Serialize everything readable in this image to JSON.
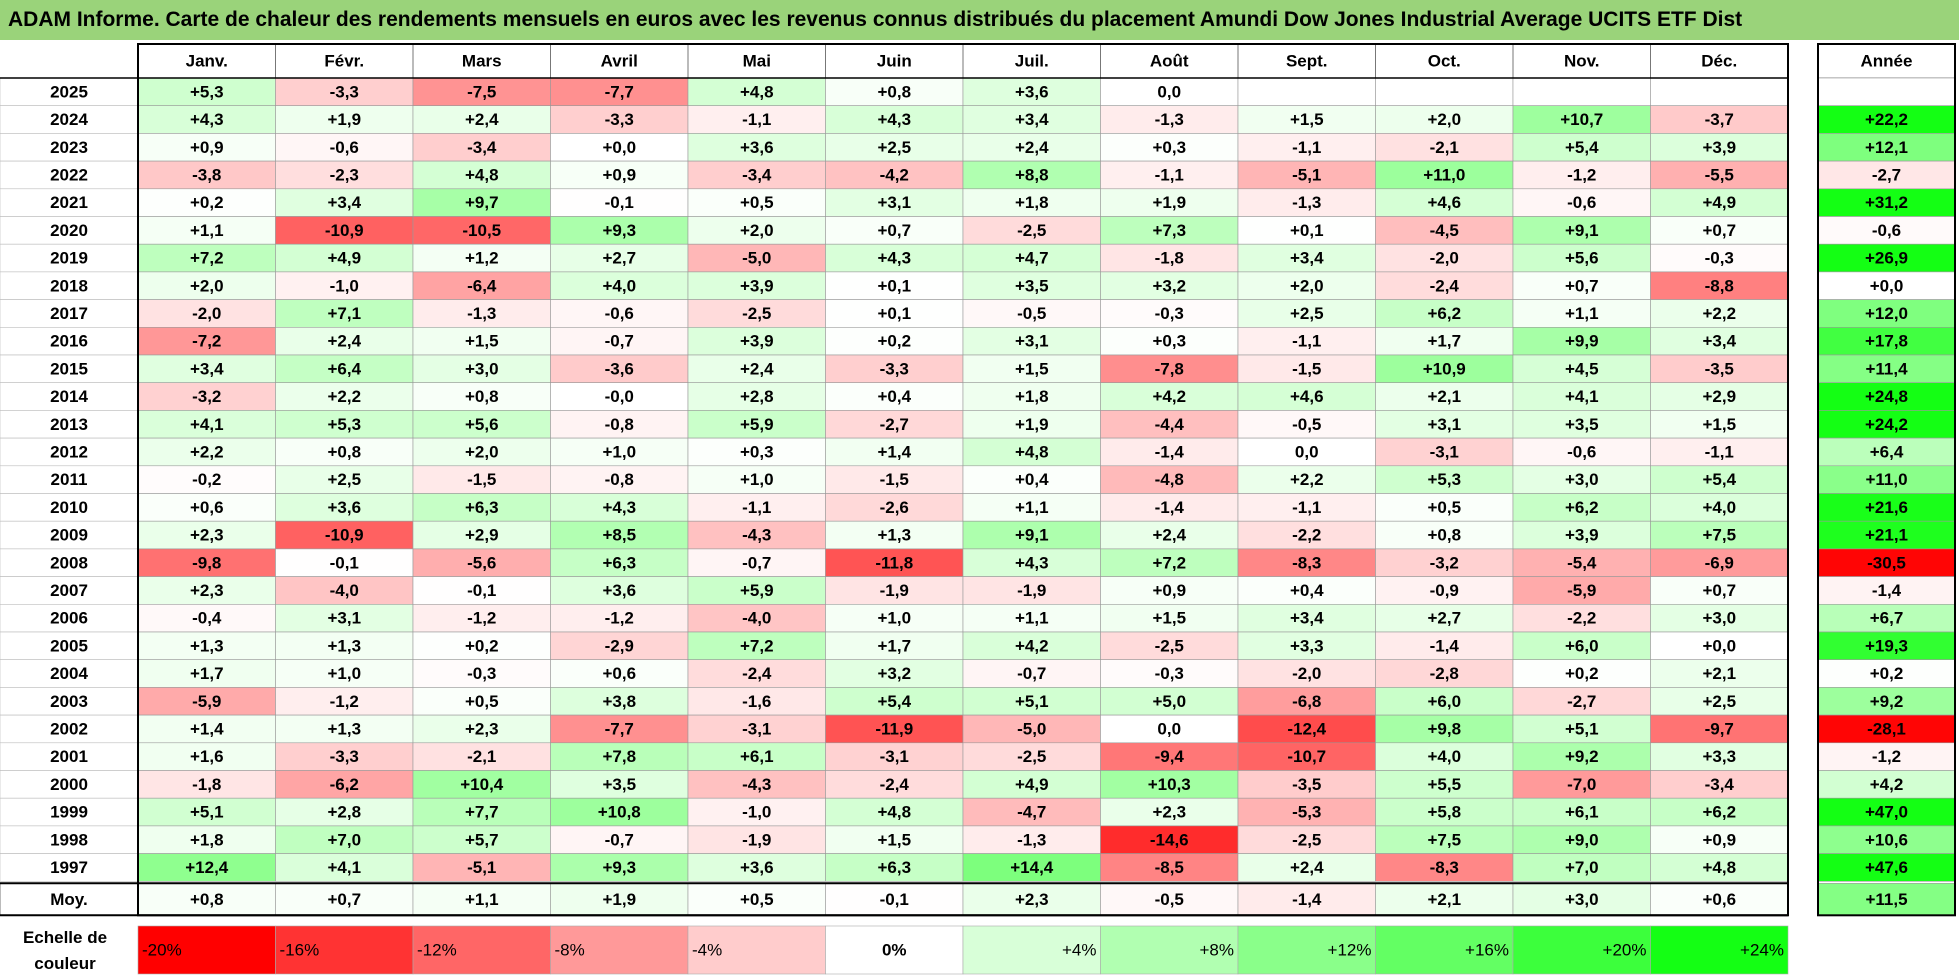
{
  "title": "ADAM Informe. Carte de chaleur des rendements mensuels en euros avec les revenus connus distribués du placement Amundi Dow Jones Industrial Average UCITS ETF Dist",
  "chart_data": {
    "type": "heatmap",
    "months": [
      "Janv.",
      "Févr.",
      "Mars",
      "Avril",
      "Mai",
      "Juin",
      "Juil.",
      "Août",
      "Sept.",
      "Oct.",
      "Nov.",
      "Déc."
    ],
    "year_header": "Année",
    "rows": [
      {
        "year": "2025",
        "values": [
          "+5,3",
          "-3,3",
          "-7,5",
          "-7,7",
          "+4,8",
          "+0,8",
          "+3,6",
          "0,0",
          "",
          "",
          "",
          ""
        ],
        "annual": ""
      },
      {
        "year": "2024",
        "values": [
          "+4,3",
          "+1,9",
          "+2,4",
          "-3,3",
          "-1,1",
          "+4,3",
          "+3,4",
          "-1,3",
          "+1,5",
          "+2,0",
          "+10,7",
          "-3,7"
        ],
        "annual": "+22,2"
      },
      {
        "year": "2023",
        "values": [
          "+0,9",
          "-0,6",
          "-3,4",
          "+0,0",
          "+3,6",
          "+2,5",
          "+2,4",
          "+0,3",
          "-1,1",
          "-2,1",
          "+5,4",
          "+3,9"
        ],
        "annual": "+12,1"
      },
      {
        "year": "2022",
        "values": [
          "-3,8",
          "-2,3",
          "+4,8",
          "+0,9",
          "-3,4",
          "-4,2",
          "+8,8",
          "-1,1",
          "-5,1",
          "+11,0",
          "-1,2",
          "-5,5"
        ],
        "annual": "-2,7"
      },
      {
        "year": "2021",
        "values": [
          "+0,2",
          "+3,4",
          "+9,7",
          "-0,1",
          "+0,5",
          "+3,1",
          "+1,8",
          "+1,9",
          "-1,3",
          "+4,6",
          "-0,6",
          "+4,9"
        ],
        "annual": "+31,2"
      },
      {
        "year": "2020",
        "values": [
          "+1,1",
          "-10,9",
          "-10,5",
          "+9,3",
          "+2,0",
          "+0,7",
          "-2,5",
          "+7,3",
          "+0,1",
          "-4,5",
          "+9,1",
          "+0,7"
        ],
        "annual": "-0,6"
      },
      {
        "year": "2019",
        "values": [
          "+7,2",
          "+4,9",
          "+1,2",
          "+2,7",
          "-5,0",
          "+4,3",
          "+4,7",
          "-1,8",
          "+3,4",
          "-2,0",
          "+5,6",
          "-0,3"
        ],
        "annual": "+26,9"
      },
      {
        "year": "2018",
        "values": [
          "+2,0",
          "-1,0",
          "-6,4",
          "+4,0",
          "+3,9",
          "+0,1",
          "+3,5",
          "+3,2",
          "+2,0",
          "-2,4",
          "+0,7",
          "-8,8"
        ],
        "annual": "+0,0"
      },
      {
        "year": "2017",
        "values": [
          "-2,0",
          "+7,1",
          "-1,3",
          "-0,6",
          "-2,5",
          "+0,1",
          "-0,5",
          "-0,3",
          "+2,5",
          "+6,2",
          "+1,1",
          "+2,2"
        ],
        "annual": "+12,0"
      },
      {
        "year": "2016",
        "values": [
          "-7,2",
          "+2,4",
          "+1,5",
          "-0,7",
          "+3,9",
          "+0,2",
          "+3,1",
          "+0,3",
          "-1,1",
          "+1,7",
          "+9,9",
          "+3,4"
        ],
        "annual": "+17,8"
      },
      {
        "year": "2015",
        "values": [
          "+3,4",
          "+6,4",
          "+3,0",
          "-3,6",
          "+2,4",
          "-3,3",
          "+1,5",
          "-7,8",
          "-1,5",
          "+10,9",
          "+4,5",
          "-3,5"
        ],
        "annual": "+11,4"
      },
      {
        "year": "2014",
        "values": [
          "-3,2",
          "+2,2",
          "+0,8",
          "-0,0",
          "+2,8",
          "+0,4",
          "+1,8",
          "+4,2",
          "+4,6",
          "+2,1",
          "+4,1",
          "+2,9"
        ],
        "annual": "+24,8"
      },
      {
        "year": "2013",
        "values": [
          "+4,1",
          "+5,3",
          "+5,6",
          "-0,8",
          "+5,9",
          "-2,7",
          "+1,9",
          "-4,4",
          "-0,5",
          "+3,1",
          "+3,5",
          "+1,5"
        ],
        "annual": "+24,2"
      },
      {
        "year": "2012",
        "values": [
          "+2,2",
          "+0,8",
          "+2,0",
          "+1,0",
          "+0,3",
          "+1,4",
          "+4,8",
          "-1,4",
          "0,0",
          "-3,1",
          "-0,6",
          "-1,1"
        ],
        "annual": "+6,4"
      },
      {
        "year": "2011",
        "values": [
          "-0,2",
          "+2,5",
          "-1,5",
          "-0,8",
          "+1,0",
          "-1,5",
          "+0,4",
          "-4,8",
          "+2,2",
          "+5,3",
          "+3,0",
          "+5,4"
        ],
        "annual": "+11,0"
      },
      {
        "year": "2010",
        "values": [
          "+0,6",
          "+3,6",
          "+6,3",
          "+4,3",
          "-1,1",
          "-2,6",
          "+1,1",
          "-1,4",
          "-1,1",
          "+0,5",
          "+6,2",
          "+4,0"
        ],
        "annual": "+21,6"
      },
      {
        "year": "2009",
        "values": [
          "+2,3",
          "-10,9",
          "+2,9",
          "+8,5",
          "-4,3",
          "+1,3",
          "+9,1",
          "+2,4",
          "-2,2",
          "+0,8",
          "+3,9",
          "+7,5"
        ],
        "annual": "+21,1"
      },
      {
        "year": "2008",
        "values": [
          "-9,8",
          "-0,1",
          "-5,6",
          "+6,3",
          "-0,7",
          "-11,8",
          "+4,3",
          "+7,2",
          "-8,3",
          "-3,2",
          "-5,4",
          "-6,9"
        ],
        "annual": "-30,5"
      },
      {
        "year": "2007",
        "values": [
          "+2,3",
          "-4,0",
          "-0,1",
          "+3,6",
          "+5,9",
          "-1,9",
          "-1,9",
          "+0,9",
          "+0,4",
          "-0,9",
          "-5,9",
          "+0,7"
        ],
        "annual": "-1,4"
      },
      {
        "year": "2006",
        "values": [
          "-0,4",
          "+3,1",
          "-1,2",
          "-1,2",
          "-4,0",
          "+1,0",
          "+1,1",
          "+1,5",
          "+3,4",
          "+2,7",
          "-2,2",
          "+3,0"
        ],
        "annual": "+6,7"
      },
      {
        "year": "2005",
        "values": [
          "+1,3",
          "+1,3",
          "+0,2",
          "-2,9",
          "+7,2",
          "+1,7",
          "+4,2",
          "-2,5",
          "+3,3",
          "-1,4",
          "+6,0",
          "+0,0"
        ],
        "annual": "+19,3"
      },
      {
        "year": "2004",
        "values": [
          "+1,7",
          "+1,0",
          "-0,3",
          "+0,6",
          "-2,4",
          "+3,2",
          "-0,7",
          "-0,3",
          "-2,0",
          "-2,8",
          "+0,2",
          "+2,1"
        ],
        "annual": "+0,2"
      },
      {
        "year": "2003",
        "values": [
          "-5,9",
          "-1,2",
          "+0,5",
          "+3,8",
          "-1,6",
          "+5,4",
          "+5,1",
          "+5,0",
          "-6,8",
          "+6,0",
          "-2,7",
          "+2,5"
        ],
        "annual": "+9,2"
      },
      {
        "year": "2002",
        "values": [
          "+1,4",
          "+1,3",
          "+2,3",
          "-7,7",
          "-3,1",
          "-11,9",
          "-5,0",
          "0,0",
          "-12,4",
          "+9,8",
          "+5,1",
          "-9,7"
        ],
        "annual": "-28,1"
      },
      {
        "year": "2001",
        "values": [
          "+1,6",
          "-3,3",
          "-2,1",
          "+7,8",
          "+6,1",
          "-3,1",
          "-2,5",
          "-9,4",
          "-10,7",
          "+4,0",
          "+9,2",
          "+3,3"
        ],
        "annual": "-1,2"
      },
      {
        "year": "2000",
        "values": [
          "-1,8",
          "-6,2",
          "+10,4",
          "+3,5",
          "-4,3",
          "-2,4",
          "+4,9",
          "+10,3",
          "-3,5",
          "+5,5",
          "-7,0",
          "-3,4"
        ],
        "annual": "+4,2"
      },
      {
        "year": "1999",
        "values": [
          "+5,1",
          "+2,8",
          "+7,7",
          "+10,8",
          "-1,0",
          "+4,8",
          "-4,7",
          "+2,3",
          "-5,3",
          "+5,8",
          "+6,1",
          "+6,2"
        ],
        "annual": "+47,0"
      },
      {
        "year": "1998",
        "values": [
          "+1,8",
          "+7,0",
          "+5,7",
          "-0,7",
          "-1,9",
          "+1,5",
          "-1,3",
          "-14,6",
          "-2,5",
          "+7,5",
          "+9,0",
          "+0,9"
        ],
        "annual": "+10,6"
      },
      {
        "year": "1997",
        "values": [
          "+12,4",
          "+4,1",
          "-5,1",
          "+9,3",
          "+3,6",
          "+6,3",
          "+14,4",
          "-8,5",
          "+2,4",
          "-8,3",
          "+7,0",
          "+4,8"
        ],
        "annual": "+47,6"
      }
    ],
    "average": {
      "label": "Moy.",
      "values": [
        "+0,8",
        "+0,7",
        "+1,1",
        "+1,9",
        "+0,5",
        "-0,1",
        "+2,3",
        "-0,5",
        "-1,4",
        "+2,1",
        "+3,0",
        "+0,6"
      ],
      "annual": "+11,5"
    },
    "scale": {
      "label_line1": "Echelle de",
      "label_line2": "couleur",
      "steps": [
        {
          "label": "-20%",
          "value": -20
        },
        {
          "label": "-16%",
          "value": -16
        },
        {
          "label": "-12%",
          "value": -12
        },
        {
          "label": "-8%",
          "value": -8
        },
        {
          "label": "-4%",
          "value": -4
        },
        {
          "label": "0%",
          "value": 0
        },
        {
          "label": "+4%",
          "value": 4
        },
        {
          "label": "+8%",
          "value": 8
        },
        {
          "label": "+12%",
          "value": 12
        },
        {
          "label": "+16%",
          "value": 16
        },
        {
          "label": "+20%",
          "value": 20
        },
        {
          "label": "+24%",
          "value": 24
        }
      ]
    },
    "colors": {
      "negative_max": "#ff0000",
      "neutral": "#ffffff",
      "positive_max": "#00ff00",
      "title_bg": "#9ad37a"
    }
  }
}
